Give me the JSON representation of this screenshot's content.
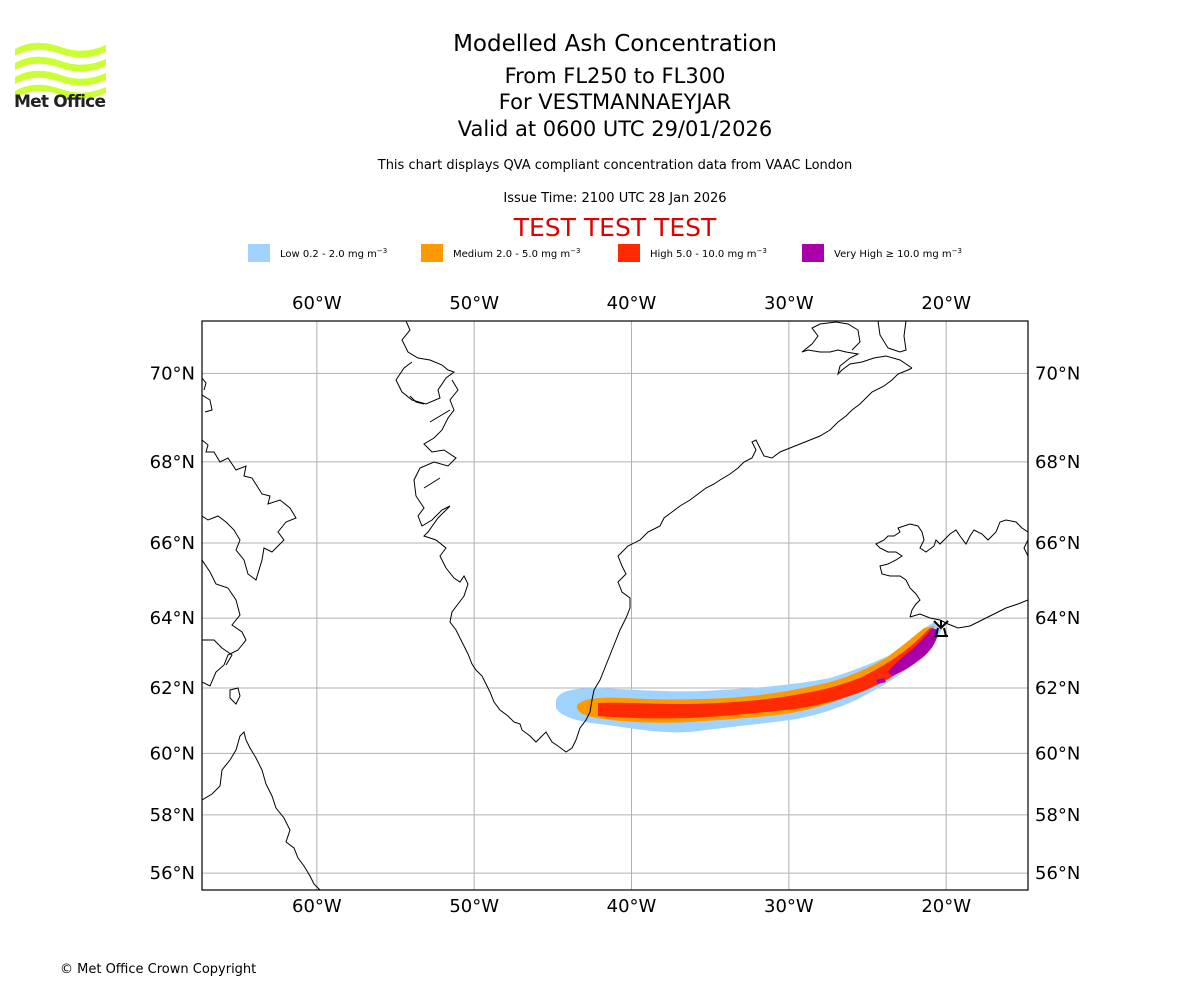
{
  "logo": {
    "name": "Met Office",
    "color": "#ccff33"
  },
  "header": {
    "title": "Modelled Ash Concentration",
    "level_range": "From FL250 to FL300",
    "volcano": "For VESTMANNAEYJAR",
    "valid_time": "Valid at 0600 UTC 29/01/2026",
    "subtitle": "This chart displays QVA compliant concentration data from VAAC London",
    "issue_time": "Issue Time: 2100 UTC 28 Jan 2026",
    "test_banner": "TEST TEST TEST"
  },
  "legend": [
    {
      "label": "Low 0.2 - 2.0 mg m",
      "unit_exp": "−3",
      "color": "#a0d2ff"
    },
    {
      "label": "Medium 2.0 - 5.0 mg m",
      "unit_exp": "−3",
      "color": "#ff9900"
    },
    {
      "label": "High 5.0 - 10.0 mg m",
      "unit_exp": "−3",
      "color": "#ff2a00"
    },
    {
      "label": "Very High  ≥  10.0 mg m",
      "unit_exp": "−3",
      "color": "#aa00aa"
    }
  ],
  "map": {
    "lon_labels": [
      "60°W",
      "50°W",
      "40°W",
      "30°W",
      "20°W"
    ],
    "lon_values": [
      -60,
      -50,
      -40,
      -30,
      -20
    ],
    "lat_labels": [
      "70°N",
      "68°N",
      "66°N",
      "64°N",
      "62°N",
      "60°N",
      "58°N",
      "56°N"
    ],
    "lat_values": [
      70,
      68,
      66,
      64,
      62,
      60,
      58,
      56
    ],
    "extent": {
      "lon_min": -67.3,
      "lon_max": -14.8,
      "lat_min": 55.4,
      "lat_max": 71.1
    },
    "source_marker": {
      "name": "VESTMANNAEYJAR",
      "lon": -20.3,
      "lat": 63.45
    },
    "grid_color": "#b0b0b0",
    "coast_color": "#000000"
  },
  "footer": {
    "copyright": "© Met Office Crown Copyright"
  }
}
